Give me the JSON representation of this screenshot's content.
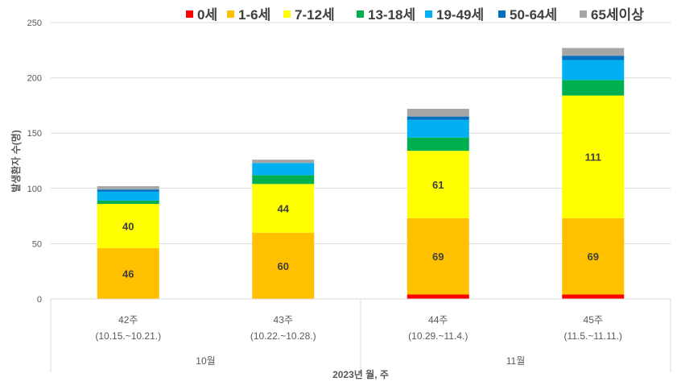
{
  "chart_data": {
    "type": "bar",
    "stacked": true,
    "categories": [
      "42주",
      "43주",
      "44주",
      "45주"
    ],
    "category_sublabels": [
      "(10.15.~10.21.)",
      "(10.22.~10.28.)",
      "(10.29.~11.4.)",
      "(11.5.~11.11.)"
    ],
    "groups": [
      {
        "label": "10월",
        "categories": [
          "42주",
          "43주"
        ]
      },
      {
        "label": "11월",
        "categories": [
          "44주",
          "45주"
        ]
      }
    ],
    "series": [
      {
        "name": "0세",
        "color": "#ff0000",
        "values": [
          0,
          0,
          4,
          4
        ]
      },
      {
        "name": "1-6세",
        "color": "#ffc000",
        "values": [
          46,
          60,
          69,
          69
        ],
        "labels": true
      },
      {
        "name": "7-12세",
        "color": "#ffff00",
        "values": [
          40,
          44,
          61,
          111
        ],
        "labels": true
      },
      {
        "name": "13-18세",
        "color": "#00b050",
        "values": [
          3,
          8,
          12,
          14
        ]
      },
      {
        "name": "19-49세",
        "color": "#00b0f0",
        "values": [
          8,
          11,
          16,
          18
        ]
      },
      {
        "name": "50-64세",
        "color": "#0070c0",
        "values": [
          2,
          0,
          3,
          4
        ]
      },
      {
        "name": "65세이상",
        "color": "#a6a6a6",
        "values": [
          3,
          3,
          7,
          7
        ]
      }
    ],
    "xlabel": "2023년 월, 주",
    "ylabel": "발생환자 수(명)",
    "ylim": [
      0,
      250
    ],
    "yticks": [
      0,
      50,
      100,
      150,
      200,
      250
    ],
    "grid": true,
    "legend": "top-right"
  }
}
